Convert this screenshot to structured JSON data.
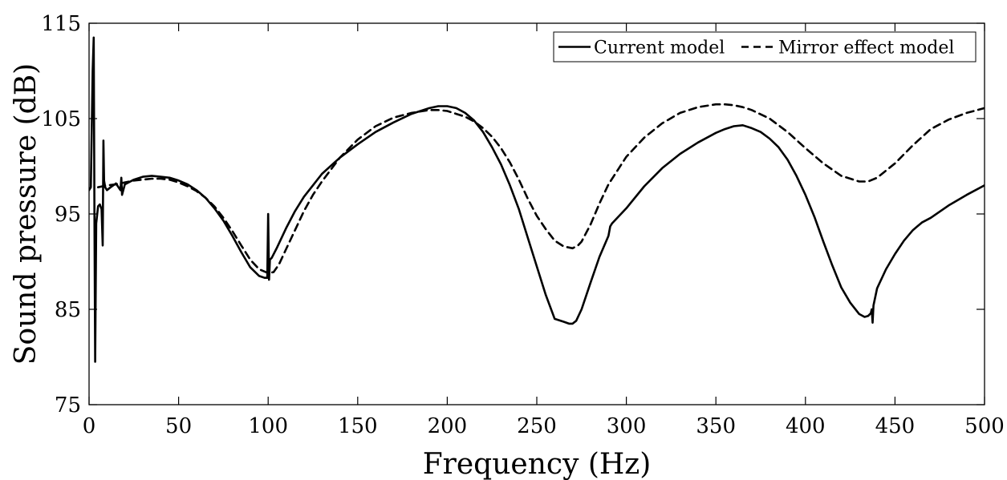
{
  "chart_data": {
    "type": "line",
    "title": "",
    "xlabel": "Frequency (Hz)",
    "ylabel": "Sound pressure (dB)",
    "xlim": [
      0,
      500
    ],
    "ylim": [
      75,
      115
    ],
    "xticks": [
      0,
      50,
      100,
      150,
      200,
      250,
      300,
      350,
      400,
      450,
      500
    ],
    "yticks": [
      75,
      85,
      95,
      105,
      115
    ],
    "grid": false,
    "legend": {
      "placement": "top-right",
      "orientation": "horizontal"
    },
    "series": [
      {
        "name": "Current model",
        "style": "solid",
        "color": "#000000",
        "x": [
          0,
          1,
          2,
          2.6,
          3,
          3.4,
          4,
          5,
          6,
          7,
          7.6,
          8,
          8.4,
          9,
          10,
          12,
          15,
          17.5,
          18,
          18.4,
          20,
          25,
          30,
          35,
          40,
          45,
          50,
          55,
          60,
          65,
          70,
          75,
          80,
          85,
          90,
          95,
          98,
          99.5,
          100,
          100.5,
          101,
          102,
          105,
          110,
          115,
          120,
          125,
          130,
          140,
          150,
          160,
          170,
          180,
          190,
          195,
          200,
          205,
          210,
          215,
          220,
          225,
          230,
          235,
          240,
          245,
          250,
          255,
          260,
          265,
          268,
          270,
          272,
          275,
          280,
          285,
          290,
          291,
          292,
          300,
          310,
          320,
          330,
          340,
          350,
          355,
          360,
          365,
          370,
          375,
          380,
          385,
          390,
          395,
          400,
          405,
          410,
          415,
          420,
          425,
          430,
          433,
          435,
          436.5,
          437,
          437.5,
          438,
          440,
          445,
          450,
          455,
          460,
          465,
          470,
          480,
          490,
          500
        ],
        "y": [
          97.5,
          97.8,
          110,
          113.5,
          95,
          79.5,
          94,
          95.8,
          96,
          95.5,
          91.7,
          102.7,
          98.5,
          97.8,
          97.5,
          97.8,
          98.2,
          97.5,
          98.8,
          97,
          98.1,
          98.6,
          98.9,
          99,
          98.9,
          98.8,
          98.5,
          98.1,
          97.5,
          96.7,
          95.6,
          94.3,
          92.7,
          91,
          89.4,
          88.5,
          88.3,
          88.3,
          95,
          88.1,
          90.2,
          90.4,
          91.5,
          93.5,
          95.3,
          96.8,
          98,
          99.2,
          100.9,
          102.3,
          103.6,
          104.6,
          105.5,
          106.1,
          106.3,
          106.3,
          106.1,
          105.6,
          104.8,
          103.6,
          102,
          100.2,
          98,
          95.5,
          92.5,
          89.5,
          86.5,
          84,
          83.7,
          83.5,
          83.5,
          83.8,
          85,
          87.8,
          90.5,
          92.7,
          93.7,
          94,
          95.6,
          97.9,
          99.8,
          101.3,
          102.5,
          103.5,
          103.9,
          104.2,
          104.3,
          104,
          103.6,
          102.9,
          102,
          100.7,
          99,
          97,
          94.7,
          92.1,
          89.6,
          87.3,
          85.7,
          84.5,
          84.2,
          84.3,
          84.6,
          85,
          83.6,
          85.4,
          87.2,
          89.2,
          90.8,
          92.2,
          93.3,
          94.1,
          94.6,
          95.9,
          97,
          98
        ]
      },
      {
        "name": "Mirror effect model",
        "style": "dashed",
        "color": "#000000",
        "x": [
          5,
          10,
          15,
          20,
          25,
          30,
          35,
          40,
          45,
          50,
          55,
          60,
          65,
          70,
          75,
          80,
          85,
          90,
          95,
          100,
          103,
          106,
          110,
          115,
          120,
          125,
          130,
          140,
          150,
          160,
          170,
          180,
          190,
          195,
          200,
          205,
          210,
          215,
          220,
          225,
          230,
          235,
          240,
          245,
          250,
          255,
          260,
          265,
          270,
          273,
          275,
          280,
          285,
          290,
          300,
          310,
          320,
          330,
          340,
          350,
          355,
          360,
          365,
          370,
          380,
          390,
          400,
          410,
          420,
          430,
          435,
          440,
          450,
          460,
          470,
          480,
          490,
          500
        ],
        "y": [
          97.8,
          98,
          98.1,
          98.3,
          98.5,
          98.6,
          98.7,
          98.7,
          98.6,
          98.3,
          97.9,
          97.4,
          96.7,
          95.8,
          94.6,
          93.2,
          91.7,
          90.2,
          89.2,
          88.8,
          88.9,
          89.7,
          91.3,
          93.3,
          95.3,
          97,
          98.4,
          100.9,
          102.8,
          104.2,
          105.1,
          105.6,
          105.9,
          105.9,
          105.8,
          105.5,
          105.2,
          104.7,
          104,
          103.1,
          101.9,
          100.4,
          98.6,
          96.6,
          94.8,
          93.4,
          92.2,
          91.6,
          91.4,
          91.7,
          92.1,
          93.9,
          96.1,
          98.1,
          101,
          103,
          104.5,
          105.6,
          106.2,
          106.5,
          106.5,
          106.4,
          106.2,
          105.9,
          105,
          103.6,
          101.9,
          100.3,
          99,
          98.4,
          98.4,
          98.8,
          100.3,
          102.2,
          103.9,
          104.9,
          105.6,
          106.1
        ]
      }
    ]
  }
}
